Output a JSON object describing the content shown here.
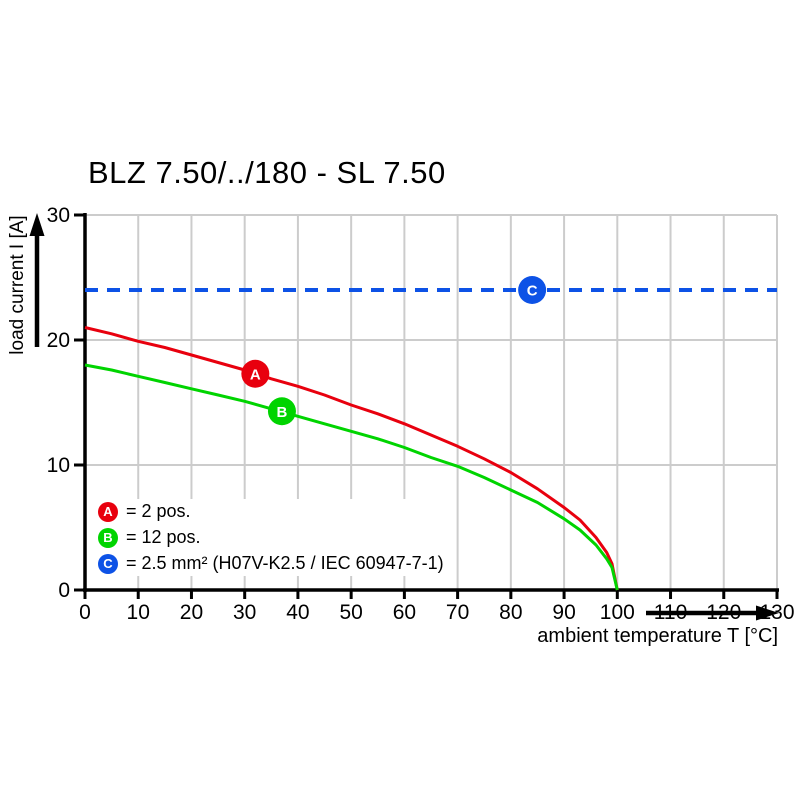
{
  "page": {
    "background": "#ffffff"
  },
  "chart_data": {
    "type": "line",
    "title": "BLZ 7.50/../180 - SL 7.50",
    "xlabel": "ambient temperature T [°C]",
    "ylabel": "load current I [A]",
    "xlim": [
      0,
      130
    ],
    "ylim": [
      0,
      30
    ],
    "x_ticks": [
      0,
      10,
      20,
      30,
      40,
      50,
      60,
      70,
      80,
      90,
      100,
      110,
      120,
      130
    ],
    "y_ticks": [
      0,
      10,
      20,
      30
    ],
    "grid": true,
    "grid_color": "#cccccc",
    "axis_color": "#000000",
    "legend_position": "inside-bottom-left",
    "series": [
      {
        "letter": "A",
        "name": "2 pos.",
        "color": "#e8000e",
        "style": "solid",
        "marker": [
          32,
          17.3
        ],
        "points": [
          [
            0,
            21
          ],
          [
            5,
            20.5
          ],
          [
            10,
            19.9
          ],
          [
            15,
            19.4
          ],
          [
            20,
            18.8
          ],
          [
            25,
            18.2
          ],
          [
            30,
            17.6
          ],
          [
            35,
            16.9
          ],
          [
            40,
            16.3
          ],
          [
            45,
            15.6
          ],
          [
            50,
            14.8
          ],
          [
            55,
            14.1
          ],
          [
            60,
            13.3
          ],
          [
            65,
            12.4
          ],
          [
            70,
            11.5
          ],
          [
            75,
            10.5
          ],
          [
            80,
            9.4
          ],
          [
            85,
            8.1
          ],
          [
            90,
            6.6
          ],
          [
            93,
            5.6
          ],
          [
            96,
            4.2
          ],
          [
            98,
            3.0
          ],
          [
            99,
            2.1
          ],
          [
            100,
            0
          ]
        ]
      },
      {
        "letter": "B",
        "name": "12 pos.",
        "color": "#00d400",
        "style": "solid",
        "marker": [
          37,
          14.3
        ],
        "points": [
          [
            0,
            18
          ],
          [
            5,
            17.6
          ],
          [
            10,
            17.1
          ],
          [
            15,
            16.6
          ],
          [
            20,
            16.1
          ],
          [
            25,
            15.6
          ],
          [
            30,
            15.1
          ],
          [
            35,
            14.5
          ],
          [
            40,
            13.9
          ],
          [
            45,
            13.3
          ],
          [
            50,
            12.7
          ],
          [
            55,
            12.1
          ],
          [
            60,
            11.4
          ],
          [
            65,
            10.6
          ],
          [
            70,
            9.9
          ],
          [
            75,
            9.0
          ],
          [
            80,
            8.0
          ],
          [
            85,
            7.0
          ],
          [
            90,
            5.7
          ],
          [
            93,
            4.8
          ],
          [
            96,
            3.6
          ],
          [
            98,
            2.5
          ],
          [
            99,
            1.8
          ],
          [
            100,
            0
          ]
        ]
      },
      {
        "letter": "C",
        "name": "2.5 mm² (H07V-K2.5 / IEC 60947-7-1)",
        "color": "#0d52e6",
        "style": "dashed",
        "marker": [
          84,
          24
        ],
        "points": [
          [
            0,
            24
          ],
          [
            130,
            24
          ]
        ]
      }
    ],
    "legend": [
      {
        "letter": "A",
        "color": "#e8000e",
        "label": "= 2 pos."
      },
      {
        "letter": "B",
        "color": "#00d400",
        "label": "= 12 pos."
      },
      {
        "letter": "C",
        "color": "#0d52e6",
        "label": "= 2.5 mm² (H07V-K2.5 / IEC 60947-7-1)"
      }
    ]
  }
}
